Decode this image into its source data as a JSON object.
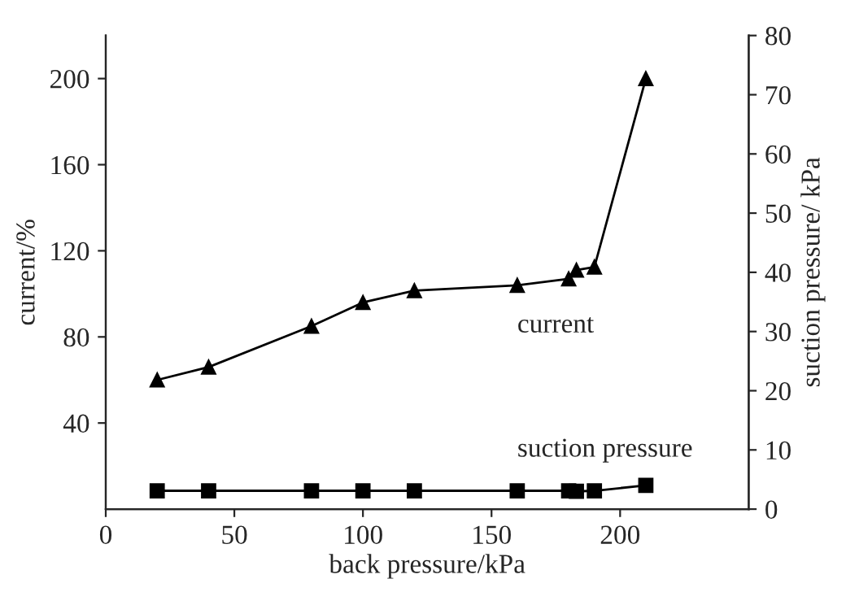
{
  "chart_data": {
    "type": "line",
    "xlabel": "back pressure/kPa",
    "ylabel": "current/%",
    "y2label": "suction pressure/ kPa",
    "series": [
      {
        "name": "current",
        "color": "#000000",
        "marker": "triangle",
        "x": [
          20,
          40,
          80,
          100,
          120,
          160,
          180,
          183,
          190,
          210
        ],
        "values": [
          60,
          66,
          85,
          96,
          101.5,
          104,
          107,
          111,
          112.5,
          200
        ]
      },
      {
        "name": "suction pressure",
        "color": "#000000",
        "marker": "square",
        "axis": "y2",
        "x": [
          20,
          40,
          80,
          100,
          120,
          160,
          180,
          183,
          190,
          210
        ],
        "values": [
          3.1,
          3.1,
          3.1,
          3.1,
          3.1,
          3.1,
          3.1,
          3.0,
          3.1,
          4.0
        ]
      }
    ],
    "xlim": [
      0,
      250
    ],
    "xticks": [
      0,
      50,
      100,
      150,
      200
    ],
    "ylim": [
      0,
      220
    ],
    "yticks": [
      40,
      80,
      120,
      160,
      200
    ],
    "y2lim": [
      0,
      80
    ],
    "y2ticks": [
      0,
      10,
      20,
      30,
      40,
      50,
      60,
      70,
      80
    ],
    "grid": false,
    "legend": false,
    "line_style": "solid"
  }
}
